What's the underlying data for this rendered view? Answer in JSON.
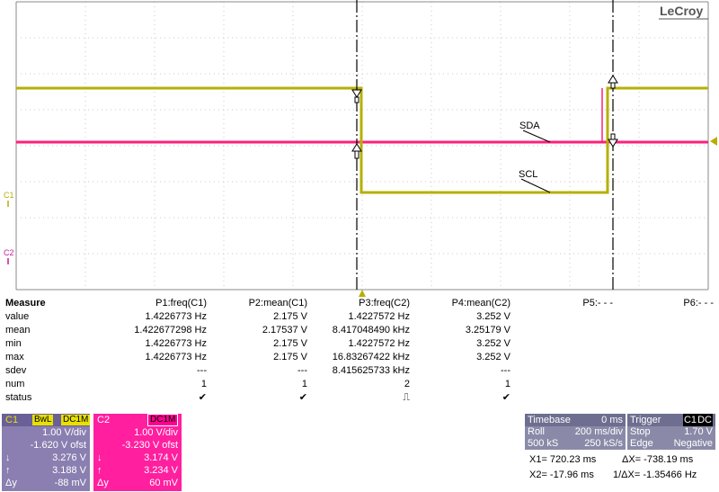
{
  "brand": "LeCroy",
  "trace_labels": {
    "sda": "SDA",
    "scl": "SCL",
    "c1_marker": "C1",
    "c2_marker": "C2"
  },
  "colors": {
    "c1": "#b5b000",
    "c2": "#ff1f7a",
    "grid": "#b0b0b0"
  },
  "measure": {
    "header": {
      "label": "Measure",
      "cols": [
        "P1:freq(C1)",
        "P2:mean(C1)",
        "P3:freq(C2)",
        "P4:mean(C2)",
        "P5:- - -",
        "P6:- - -"
      ]
    },
    "rows": [
      {
        "label": "value",
        "cols": [
          "1.4226773 Hz",
          "2.175 V",
          "1.4227572 Hz",
          "3.252 V",
          "",
          ""
        ]
      },
      {
        "label": "mean",
        "cols": [
          "1.422677298 Hz",
          "2.17537 V",
          "8.417048490 kHz",
          "3.25179 V",
          "",
          ""
        ]
      },
      {
        "label": "min",
        "cols": [
          "1.4226773 Hz",
          "2.175 V",
          "1.4227572 Hz",
          "3.252 V",
          "",
          ""
        ]
      },
      {
        "label": "max",
        "cols": [
          "1.4226773 Hz",
          "2.175 V",
          "16.83267422 kHz",
          "3.252 V",
          "",
          ""
        ]
      },
      {
        "label": "sdev",
        "cols": [
          "---",
          "---",
          "8.415625733 kHz",
          "---",
          "",
          ""
        ]
      },
      {
        "label": "num",
        "cols": [
          "1",
          "1",
          "2",
          "1",
          "",
          ""
        ]
      },
      {
        "label": "status",
        "cols": [
          "✔",
          "✔",
          "⎍",
          "✔",
          "",
          ""
        ]
      }
    ]
  },
  "channels": {
    "c1": {
      "name": "C1",
      "tags": [
        "BwL",
        "DC1M"
      ],
      "vdiv": "1.00 V/div",
      "ofst": "-1.620 V ofst",
      "down_sym": "↓",
      "down_val": "3.276 V",
      "up_sym": "↑",
      "up_val": "3.188 V",
      "dy_sym": "Δy",
      "dy_val": "-88 mV"
    },
    "c2": {
      "name": "C2",
      "tags": [
        "DC1M"
      ],
      "vdiv": "1.00 V/div",
      "ofst": "-3.230 V ofst",
      "down_sym": "↓",
      "down_val": "3.174 V",
      "up_sym": "↑",
      "up_val": "3.234 V",
      "dy_sym": "Δy",
      "dy_val": "60 mV"
    }
  },
  "timebase": {
    "title": "Timebase",
    "delay": "0 ms",
    "mode": "Roll",
    "tdiv": "200 ms/div",
    "samples": "500 kS",
    "rate": "250 kS/s"
  },
  "trigger": {
    "title": "Trigger",
    "tags": [
      "C1",
      "DC"
    ],
    "mode": "Stop",
    "level": "1.70 V",
    "type": "Edge",
    "slope": "Negative"
  },
  "cursors": {
    "x1": "X1=  720.23 ms",
    "dx": "ΔX=   -738.19 ms",
    "x2": "X2=  -17.96 ms",
    "inv_dx": "1/ΔX=  -1.35466 Hz"
  }
}
